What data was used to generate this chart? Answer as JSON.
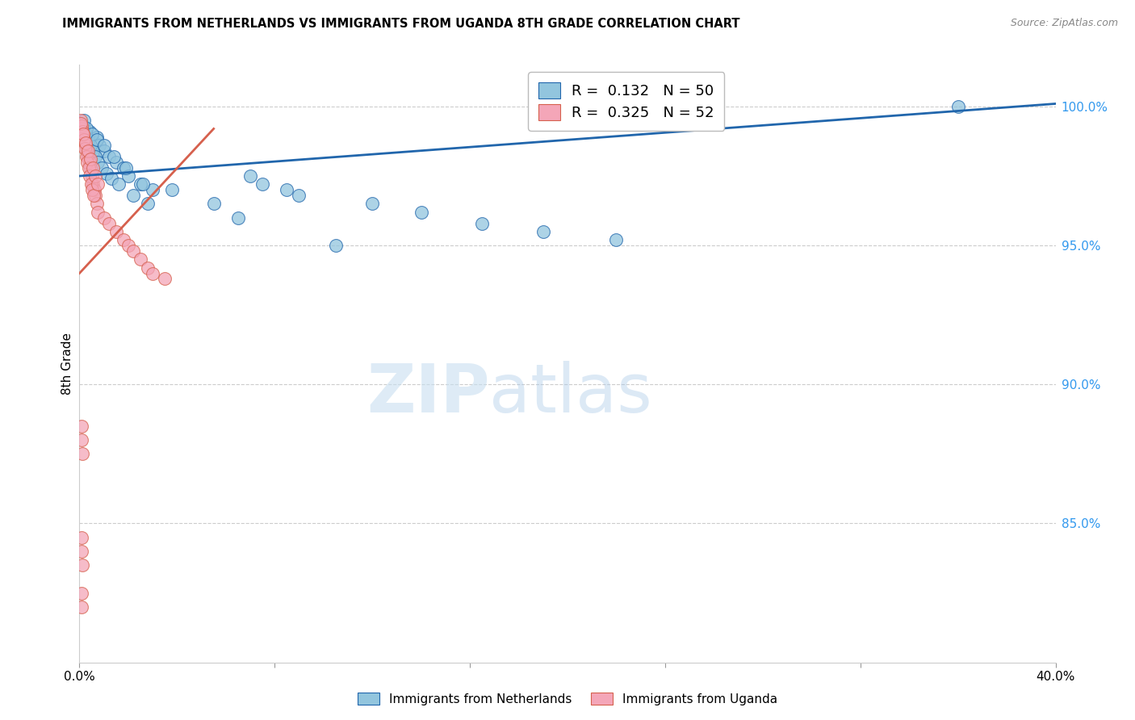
{
  "title": "IMMIGRANTS FROM NETHERLANDS VS IMMIGRANTS FROM UGANDA 8TH GRADE CORRELATION CHART",
  "source": "Source: ZipAtlas.com",
  "ylabel": "8th Grade",
  "legend_blue_R": "0.132",
  "legend_blue_N": "50",
  "legend_pink_R": "0.325",
  "legend_pink_N": "52",
  "legend_label_blue": "Immigrants from Netherlands",
  "legend_label_pink": "Immigrants from Uganda",
  "blue_color": "#92c5de",
  "pink_color": "#f4a6b8",
  "trendline_blue_color": "#2166ac",
  "trendline_pink_color": "#d6604d",
  "watermark_zip": "ZIP",
  "watermark_atlas": "atlas",
  "blue_scatter_x": [
    0.1,
    0.2,
    0.3,
    0.4,
    0.5,
    0.6,
    0.7,
    0.8,
    1.0,
    1.2,
    1.5,
    1.8,
    2.0,
    2.5,
    3.0,
    0.15,
    0.25,
    0.35,
    0.45,
    0.55,
    0.65,
    0.75,
    0.9,
    1.1,
    1.3,
    1.6,
    2.2,
    2.8,
    0.2,
    0.3,
    0.5,
    0.7,
    1.0,
    1.4,
    1.9,
    2.6,
    7.0,
    7.5,
    8.5,
    9.0,
    12.0,
    14.0,
    16.5,
    19.0,
    22.0,
    36.0,
    3.8,
    5.5,
    6.5,
    10.5
  ],
  "blue_scatter_y": [
    99.2,
    99.0,
    98.8,
    99.1,
    98.5,
    98.7,
    98.9,
    98.6,
    98.4,
    98.2,
    98.0,
    97.8,
    97.5,
    97.2,
    97.0,
    99.3,
    99.0,
    98.8,
    98.6,
    98.4,
    98.2,
    98.0,
    97.8,
    97.6,
    97.4,
    97.2,
    96.8,
    96.5,
    99.5,
    99.2,
    99.0,
    98.8,
    98.6,
    98.2,
    97.8,
    97.2,
    97.5,
    97.2,
    97.0,
    96.8,
    96.5,
    96.2,
    95.8,
    95.5,
    95.2,
    100.0,
    97.0,
    96.5,
    96.0,
    95.0
  ],
  "pink_scatter_x": [
    0.05,
    0.1,
    0.15,
    0.2,
    0.25,
    0.3,
    0.35,
    0.4,
    0.45,
    0.5,
    0.55,
    0.6,
    0.65,
    0.7,
    0.75,
    0.08,
    0.12,
    0.18,
    0.22,
    0.28,
    0.32,
    0.38,
    0.42,
    0.48,
    0.52,
    0.58,
    0.06,
    0.14,
    0.24,
    0.34,
    0.44,
    0.54,
    0.64,
    0.74,
    1.0,
    1.2,
    1.5,
    1.8,
    2.0,
    2.2,
    2.5,
    2.8,
    3.0,
    3.5,
    0.08,
    0.1,
    0.12,
    0.08,
    0.1,
    0.12,
    0.08,
    0.1
  ],
  "pink_scatter_y": [
    99.5,
    99.2,
    99.0,
    98.8,
    98.6,
    98.4,
    98.2,
    98.0,
    97.8,
    97.5,
    97.2,
    97.0,
    96.8,
    96.5,
    96.2,
    99.3,
    99.1,
    98.8,
    98.5,
    98.2,
    98.0,
    97.8,
    97.5,
    97.2,
    97.0,
    96.8,
    99.4,
    99.0,
    98.7,
    98.4,
    98.1,
    97.8,
    97.5,
    97.2,
    96.0,
    95.8,
    95.5,
    95.2,
    95.0,
    94.8,
    94.5,
    94.2,
    94.0,
    93.8,
    88.5,
    88.0,
    87.5,
    84.5,
    84.0,
    83.5,
    82.5,
    82.0
  ],
  "xlim": [
    0.0,
    40.0
  ],
  "ylim": [
    80.0,
    101.5
  ],
  "blue_trend_x0": 0.0,
  "blue_trend_y0": 97.5,
  "blue_trend_x1": 40.0,
  "blue_trend_y1": 100.1,
  "pink_trend_x0": 0.0,
  "pink_trend_y0": 94.0,
  "pink_trend_x1": 5.5,
  "pink_trend_y1": 99.2
}
